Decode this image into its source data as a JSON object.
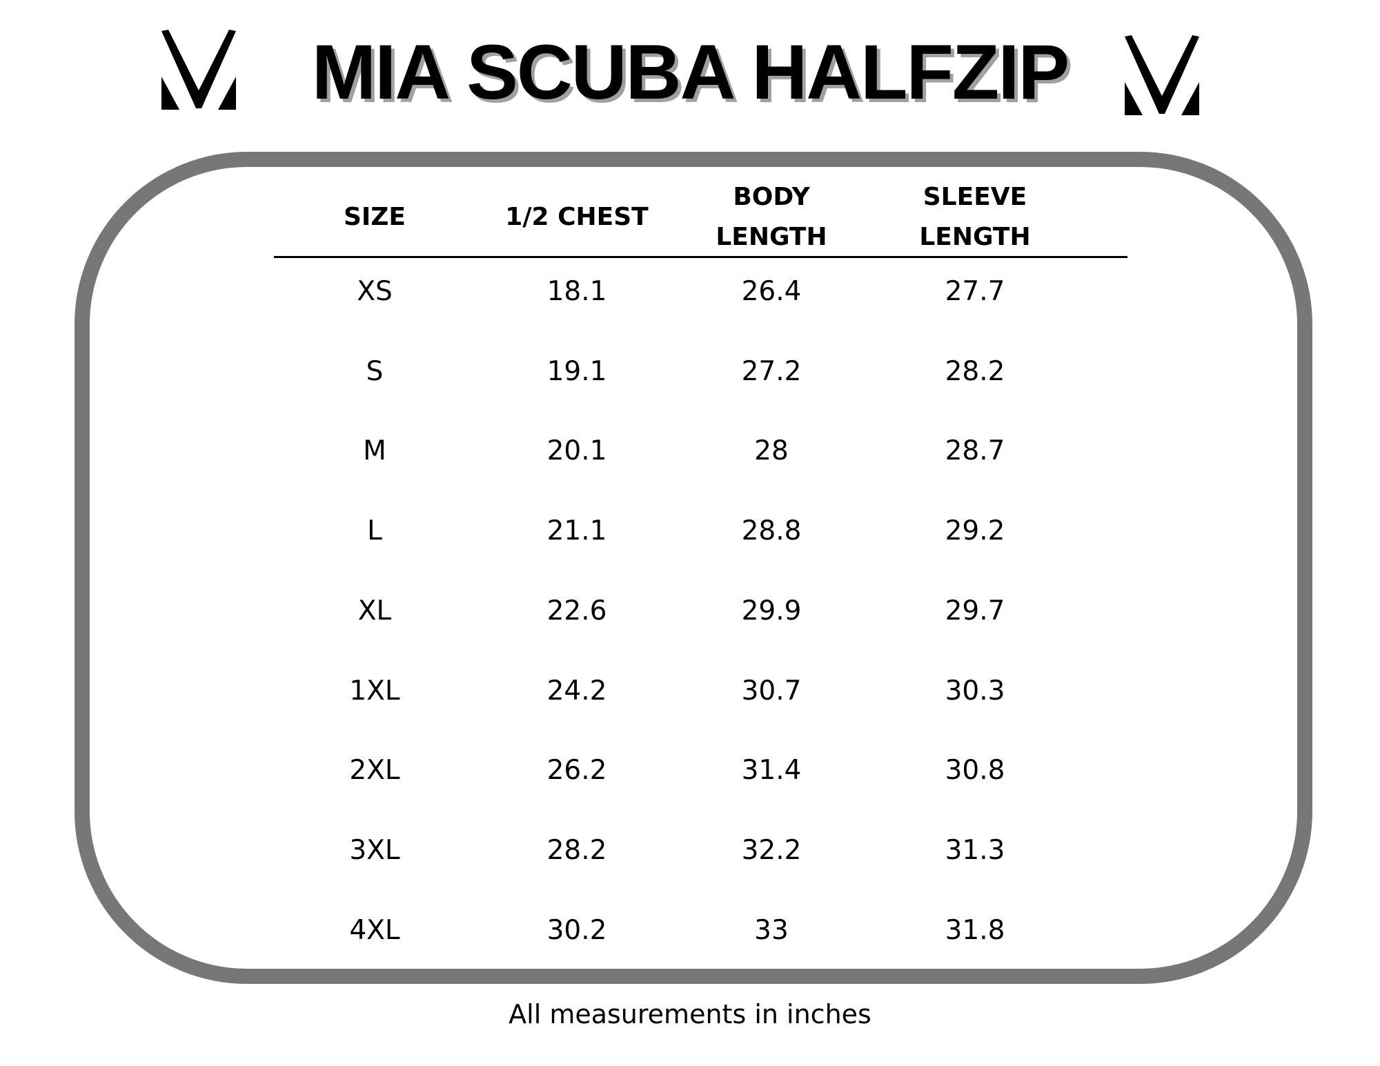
{
  "title": "MIA SCUBA HALFZIP",
  "logo": {
    "icon": "mv-monogram-logo",
    "color": "#000000"
  },
  "table": {
    "headers": [
      {
        "line1": "SIZE",
        "line2": ""
      },
      {
        "line1": "1/2 CHEST",
        "line2": ""
      },
      {
        "line1": "BODY",
        "line2": "LENGTH"
      },
      {
        "line1": "SLEEVE",
        "line2": "LENGTH"
      }
    ],
    "rows": [
      [
        "XS",
        "18.1",
        "26.4",
        "27.7"
      ],
      [
        "S",
        "19.1",
        "27.2",
        "28.2"
      ],
      [
        "M",
        "20.1",
        "28",
        "28.7"
      ],
      [
        "L",
        "21.1",
        "28.8",
        "29.2"
      ],
      [
        "XL",
        "22.6",
        "29.9",
        "29.7"
      ],
      [
        "1XL",
        "24.2",
        "30.7",
        "30.3"
      ],
      [
        "2XL",
        "26.2",
        "31.4",
        "30.8"
      ],
      [
        "3XL",
        "28.2",
        "32.2",
        "31.3"
      ],
      [
        "4XL",
        "30.2",
        "33",
        "31.8"
      ]
    ]
  },
  "footer": "All measurements in inches",
  "colors": {
    "border": "#777777",
    "title_shadow": "#a0a0a0"
  }
}
